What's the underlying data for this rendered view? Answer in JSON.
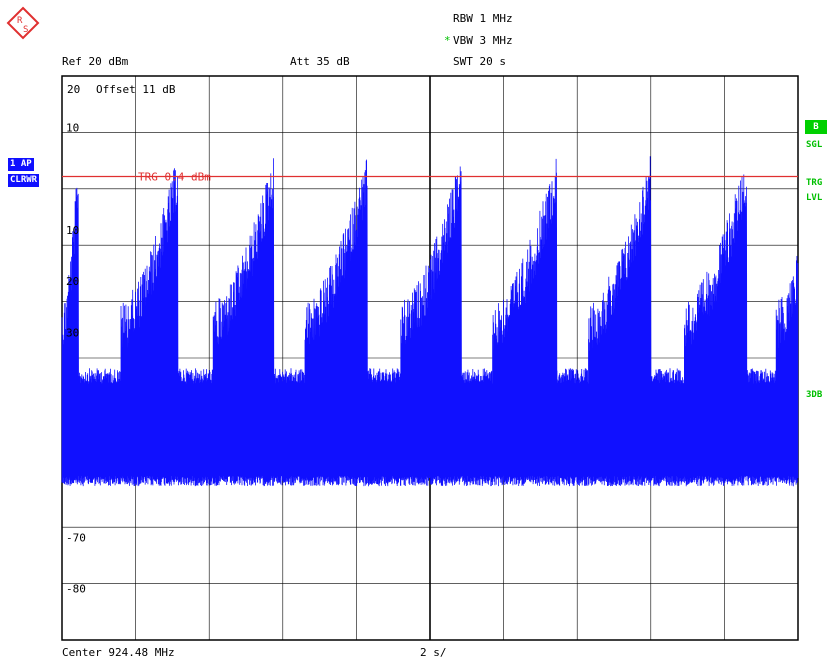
{
  "header": {
    "rbw": "RBW 1 MHz",
    "vbw_mark": "*",
    "vbw": "VBW 3 MHz",
    "swt": "SWT 20 s",
    "ref": "Ref  20 dBm",
    "att": "Att  35 dB"
  },
  "left_labels": {
    "trace": "1 AP",
    "mode": "CLRWR"
  },
  "right_labels": {
    "b": "B",
    "sgl": "SGL",
    "trg": "TRG",
    "lvl": "LVL",
    "db3": "3DB"
  },
  "footer": {
    "center": "Center 924.48 MHz",
    "span": "2 s/"
  },
  "colors": {
    "trace": "#1010ff",
    "trigger_line": "#e03030",
    "grid": "#000000",
    "status_green": "#00d000"
  },
  "chart_data": {
    "type": "line",
    "xlabel": "",
    "ylabel": "",
    "offset_label": "Offset  11 dB",
    "top_label": "20",
    "y_ticks": [
      {
        "value": 10,
        "label": "10"
      },
      {
        "value": -10,
        "label": "10"
      },
      {
        "value": -20,
        "label": "20"
      },
      {
        "value": -30,
        "label": "30"
      },
      {
        "value": -70,
        "label": "-70"
      },
      {
        "value": -80,
        "label": "-80"
      }
    ],
    "ylim": [
      -90,
      20
    ],
    "xlim": [
      0,
      20
    ],
    "x_unit": "s",
    "grid": true,
    "trigger": {
      "label": "TRG  0.4 dBm",
      "value": 0.4
    },
    "noise_floor": {
      "low": -58,
      "high": -37
    },
    "bursts": [
      {
        "start": 0.0,
        "end": 0.45,
        "peak": 5.0
      },
      {
        "start": 1.6,
        "end": 3.15,
        "peak": 5.0
      },
      {
        "start": 4.1,
        "end": 5.75,
        "peak": 5.0
      },
      {
        "start": 6.6,
        "end": 8.3,
        "peak": 5.0
      },
      {
        "start": 9.2,
        "end": 10.85,
        "peak": 5.0
      },
      {
        "start": 11.7,
        "end": 13.45,
        "peak": 5.0
      },
      {
        "start": 14.3,
        "end": 16.0,
        "peak": 5.0
      },
      {
        "start": 16.9,
        "end": 18.6,
        "peak": 5.0
      },
      {
        "start": 19.4,
        "end": 20.0,
        "peak": -14.0
      }
    ],
    "burst_start_level": -24
  }
}
